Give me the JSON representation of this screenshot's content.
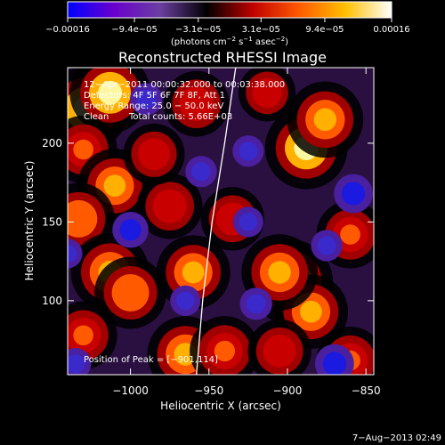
{
  "chart_data": {
    "type": "heatmap",
    "title": "Reconstructed RHESSI Image",
    "xlabel": "Heliocentric X (arcsec)",
    "ylabel": "Heliocentric Y (arcsec)",
    "xlim": [
      -1040,
      -845
    ],
    "ylim": [
      53,
      248
    ],
    "x_ticks": [
      -1000,
      -950,
      -900,
      -850
    ],
    "x_tick_labels": [
      "−1000",
      "−950",
      "−900",
      "−850"
    ],
    "y_ticks": [
      100,
      150,
      200
    ],
    "y_tick_labels": [
      "100",
      "150",
      "200"
    ],
    "colorbar": {
      "range": [
        -0.00016,
        0.00016
      ],
      "ticks": [
        -0.00016,
        -9.4e-05,
        -3.1e-05,
        3.1e-05,
        9.4e-05,
        0.00016
      ],
      "tick_labels": [
        "−0.00016",
        "−9.4e−05",
        "−3.1e−05",
        "3.1e−05",
        "9.4e−05",
        "0.00016"
      ],
      "units_base": "(photons cm",
      "units_exp1": "−2",
      "units_mid": " s",
      "units_exp2": "−1",
      "units_mid2": " asec",
      "units_exp3": "−2",
      "units_end": ")",
      "colors": [
        "#0000ff",
        "#6a00cc",
        "#6b3fa0",
        "#000000",
        "#c00000",
        "#ff5a00",
        "#ffc000",
        "#ffffff"
      ]
    },
    "annotations": [
      "12−Apr−2011 00:00:32.000 to 00:03:38.000",
      "Detectors: 4F 5F 6F 7F 8F, Att 1",
      "Energy Range: 25.0 − 50.0 keV",
      "Clean",
      "Total counts: 5.66E+03"
    ],
    "peak_label": "Position of Peak = [−901,114]",
    "peak": [
      -901,
      114
    ],
    "limb": [
      [
        -958,
        53
      ],
      [
        -954,
        100
      ],
      [
        -948,
        150
      ],
      [
        -940,
        200
      ],
      [
        -933,
        248
      ]
    ],
    "sources": [
      {
        "x": -1028,
        "y": 222,
        "v": 1.0
      },
      {
        "x": -1013,
        "y": 232,
        "v": 0.9
      },
      {
        "x": -1030,
        "y": 196,
        "v": 0.6
      },
      {
        "x": -1010,
        "y": 173,
        "v": 0.75
      },
      {
        "x": -1033,
        "y": 152,
        "v": 0.7
      },
      {
        "x": -1013,
        "y": 118,
        "v": 0.85
      },
      {
        "x": -1000,
        "y": 105,
        "v": 0.7
      },
      {
        "x": -1030,
        "y": 78,
        "v": 0.6
      },
      {
        "x": -975,
        "y": 160,
        "v": 0.55
      },
      {
        "x": -985,
        "y": 193,
        "v": 0.45
      },
      {
        "x": -958,
        "y": 225,
        "v": 0.55
      },
      {
        "x": -960,
        "y": 118,
        "v": 0.75
      },
      {
        "x": -965,
        "y": 66,
        "v": 0.8
      },
      {
        "x": -940,
        "y": 68,
        "v": 0.65
      },
      {
        "x": -935,
        "y": 152,
        "v": 0.5
      },
      {
        "x": -913,
        "y": 232,
        "v": 0.35
      },
      {
        "x": -888,
        "y": 197,
        "v": 0.95
      },
      {
        "x": -876,
        "y": 215,
        "v": 0.8
      },
      {
        "x": -898,
        "y": 112,
        "v": 1.0
      },
      {
        "x": -885,
        "y": 93,
        "v": 0.75
      },
      {
        "x": -905,
        "y": 118,
        "v": 0.8
      },
      {
        "x": -860,
        "y": 142,
        "v": 0.6
      },
      {
        "x": -905,
        "y": 68,
        "v": 0.5
      },
      {
        "x": -860,
        "y": 62,
        "v": 0.6
      },
      {
        "x": -1000,
        "y": 145,
        "v": -0.75
      },
      {
        "x": -990,
        "y": 228,
        "v": -0.55
      },
      {
        "x": -965,
        "y": 100,
        "v": -0.45
      },
      {
        "x": -955,
        "y": 182,
        "v": -0.5
      },
      {
        "x": -920,
        "y": 98,
        "v": -0.55
      },
      {
        "x": -858,
        "y": 168,
        "v": -0.9
      },
      {
        "x": -875,
        "y": 135,
        "v": -0.5
      },
      {
        "x": -870,
        "y": 60,
        "v": -0.9
      },
      {
        "x": -1035,
        "y": 60,
        "v": -0.5
      },
      {
        "x": -925,
        "y": 195,
        "v": -0.5
      },
      {
        "x": -925,
        "y": 150,
        "v": -0.45
      },
      {
        "x": -1040,
        "y": 130,
        "v": -0.4
      }
    ]
  },
  "footer": {
    "timestamp": "7−Aug−2013 02:49"
  }
}
